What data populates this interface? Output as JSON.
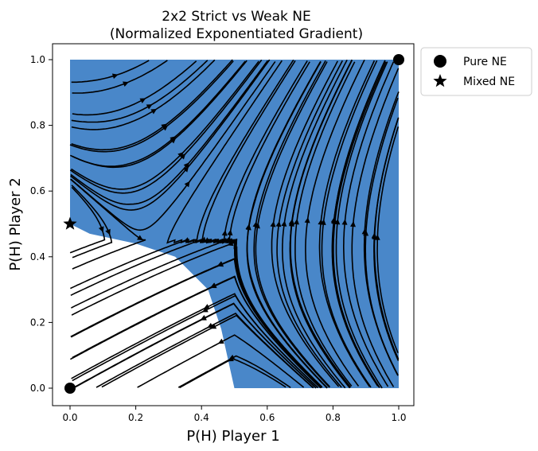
{
  "chart_data": {
    "type": "streamplot",
    "title_lines": [
      "2x2 Strict vs Weak NE",
      "(Normalized Exponentiated Gradient)"
    ],
    "xlabel": "P(H) Player 1",
    "ylabel": "P(H) Player 2",
    "xlim": [
      -0.04,
      1.04
    ],
    "ylim": [
      -0.05,
      1.05
    ],
    "xticks": [
      "0.0",
      "0.2",
      "0.4",
      "0.6",
      "0.8",
      "1.0"
    ],
    "yticks": [
      "0.0",
      "0.2",
      "0.4",
      "0.6",
      "0.8",
      "1.0"
    ],
    "xtick_values": [
      0,
      0.2,
      0.4,
      0.6,
      0.8,
      1.0
    ],
    "ytick_values": [
      0,
      0.2,
      0.4,
      0.6,
      0.8,
      1.0
    ],
    "grid": false,
    "legend_position": "outside-top-right",
    "region_color": "#3a7dc4",
    "line_color": "#000000",
    "basin_boundary": [
      [
        0,
        1
      ],
      [
        1,
        1
      ],
      [
        1,
        0
      ],
      [
        0.5,
        0
      ],
      [
        0.46,
        0.18
      ],
      [
        0.42,
        0.3
      ],
      [
        0.32,
        0.4
      ],
      [
        0.2,
        0.44
      ],
      [
        0.06,
        0.47
      ],
      [
        0,
        0.5
      ]
    ],
    "equilibria": [
      {
        "name": "Pure NE",
        "marker": "circle",
        "points": [
          [
            1.0,
            1.0
          ],
          [
            0.0,
            0.0
          ]
        ]
      },
      {
        "name": "Mixed NE",
        "marker": "star",
        "points": [
          [
            0.0,
            0.5
          ]
        ]
      }
    ]
  }
}
